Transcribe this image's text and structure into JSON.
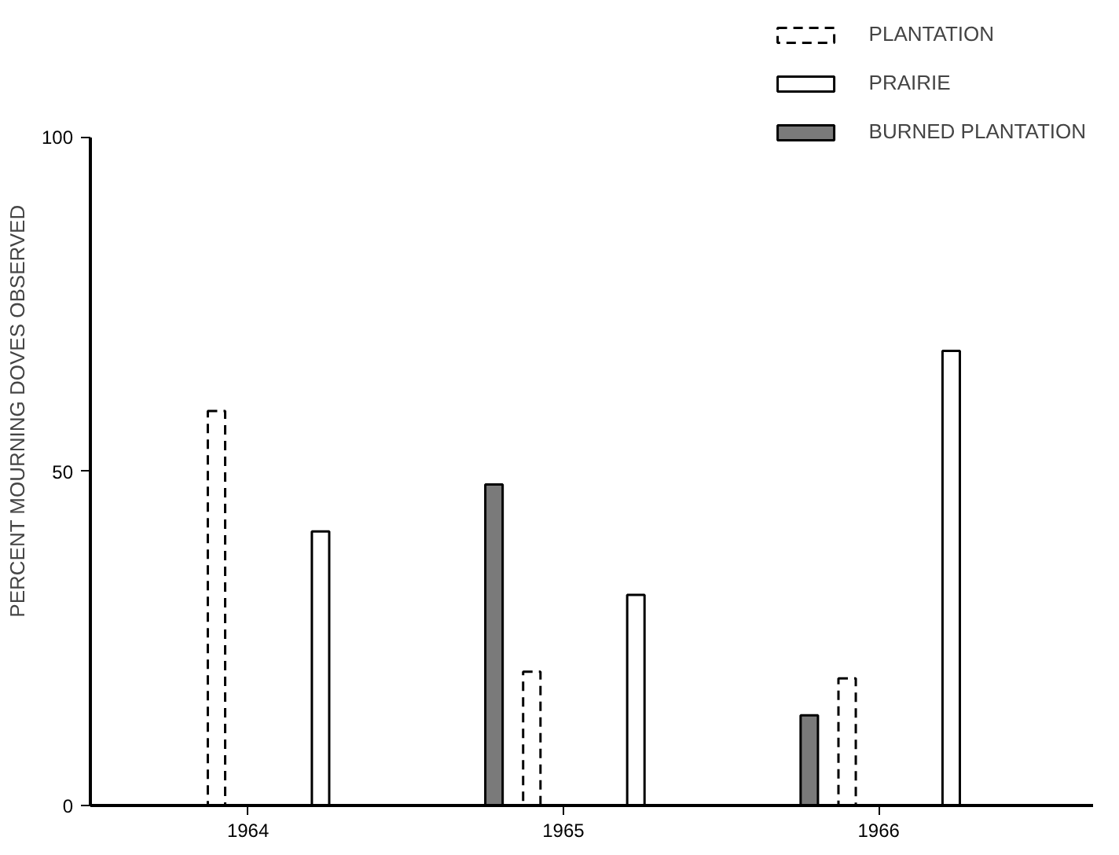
{
  "chart_data": {
    "type": "bar",
    "ylabel": "PERCENT MOURNING DOVES OBSERVED",
    "categories": [
      "1964",
      "1965",
      "1966"
    ],
    "series": [
      {
        "name": "PLANTATION",
        "color": "#ffffff",
        "line_style": "dashed",
        "values": [
          59,
          20,
          19
        ]
      },
      {
        "name": "PRAIRIE",
        "color": "#ffffff",
        "line_style": "solid",
        "values": [
          41,
          31.5,
          68
        ]
      },
      {
        "name": "BURNED PLANTATION",
        "color": "#7a7a7a",
        "line_style": "solid",
        "values": [
          null,
          48,
          13.5
        ]
      }
    ],
    "ylim": [
      0,
      100
    ],
    "yticks": [
      0,
      50,
      100
    ],
    "grid": false,
    "legend": "top right"
  }
}
